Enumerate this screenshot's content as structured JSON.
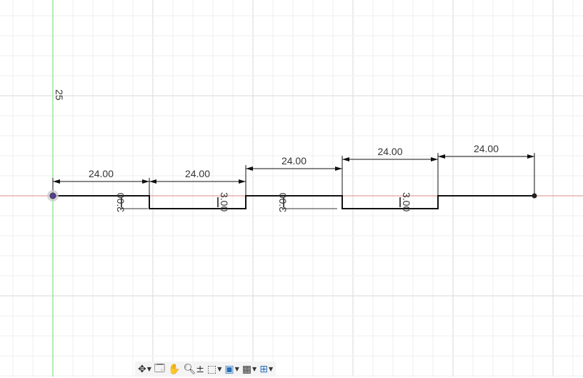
{
  "canvas": {
    "axis_label": "25",
    "horizontal_dimensions": [
      "24.00",
      "24.00",
      "24.00",
      "24.00",
      "24.00"
    ],
    "vertical_dimensions": [
      "3.00",
      "3.00",
      "3.00",
      "3.00"
    ],
    "colors": {
      "x_axis": "#e08a8a",
      "y_axis": "#66dd66",
      "grid": "#e6e6e6",
      "sketch": "#111111",
      "origin": "#5a3c9c"
    }
  },
  "toolbar": {
    "items": [
      {
        "icon": "orbit-icon",
        "dropdown": true
      },
      {
        "icon": "look-at-icon",
        "dropdown": false
      },
      {
        "icon": "pan-hand-icon",
        "dropdown": false
      },
      {
        "icon": "zoom-icon",
        "dropdown": false
      },
      {
        "icon": "zoom-window-icon",
        "dropdown": true
      },
      {
        "icon": "display-settings-icon",
        "dropdown": true
      },
      {
        "icon": "grid-snaps-icon",
        "dropdown": true
      },
      {
        "icon": "viewports-icon",
        "dropdown": true
      }
    ]
  }
}
